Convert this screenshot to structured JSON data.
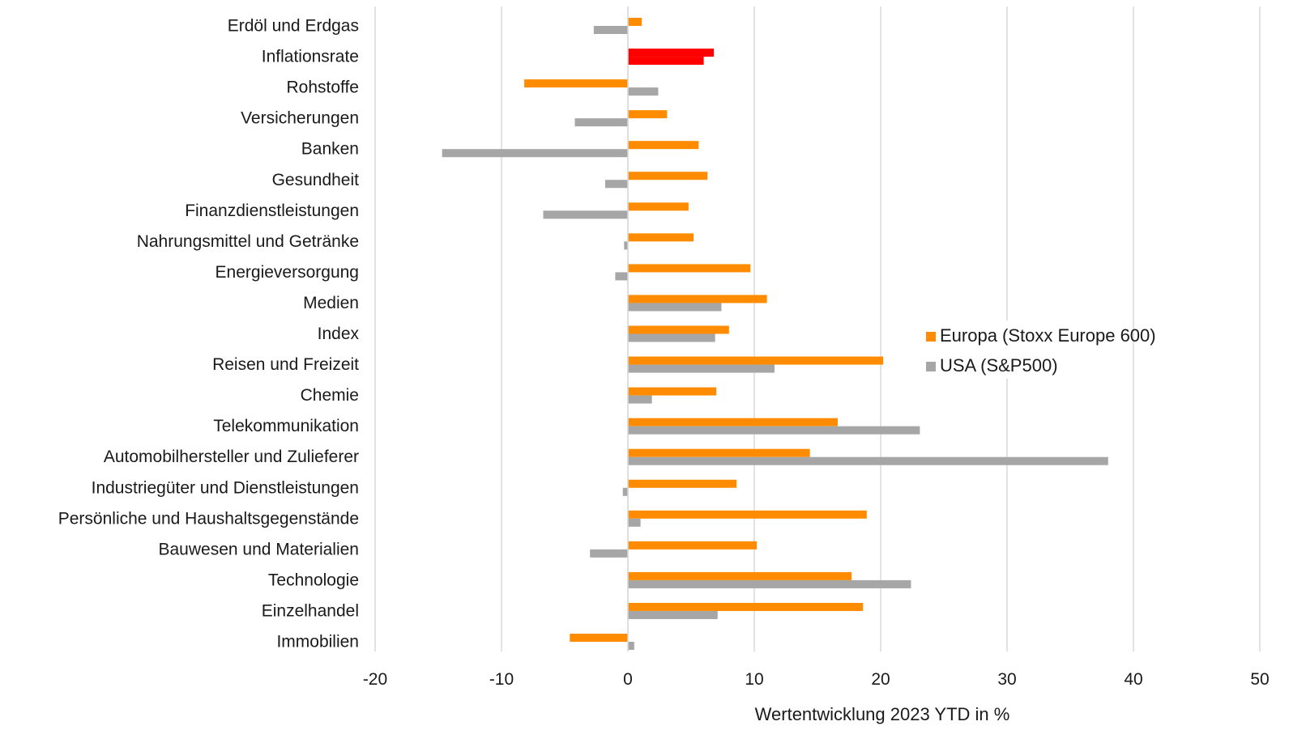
{
  "chart_data": {
    "type": "bar",
    "orientation": "horizontal",
    "categories": [
      "Erdöl und Erdgas",
      "Inflationsrate",
      "Rohstoffe",
      "Versicherungen",
      "Banken",
      "Gesundheit",
      "Finanzdienstleistungen",
      "Nahrungsmittel und Getränke",
      "Energieversorgung",
      "Medien",
      "Index",
      "Reisen und Freizeit",
      "Chemie",
      "Telekommunikation",
      "Automobilhersteller und Zulieferer",
      "Industriegüter und Dienstleistungen",
      "Persönliche und Haushaltsgegenstände",
      "Bauwesen und Materialien",
      "Technologie",
      "Einzelhandel",
      "Immobilien"
    ],
    "series": [
      {
        "name": "Europa (Stoxx Europe 600)",
        "color": "#ff8c00",
        "values": [
          1.1,
          6.8,
          -8.2,
          3.1,
          5.6,
          6.3,
          4.8,
          5.2,
          9.7,
          11.0,
          8.0,
          20.2,
          7.0,
          16.6,
          14.4,
          8.6,
          18.9,
          10.2,
          17.7,
          18.6,
          -4.6
        ]
      },
      {
        "name": "USA (S&P500)",
        "color": "#a6a6a6",
        "values": [
          -2.7,
          6.0,
          2.4,
          -4.2,
          -14.7,
          -1.8,
          -6.7,
          -0.3,
          -1.0,
          7.4,
          6.9,
          11.6,
          1.9,
          23.1,
          38.0,
          -0.4,
          1.0,
          -3.0,
          22.4,
          7.1,
          0.5
        ]
      }
    ],
    "highlight": {
      "category": "Inflationsrate",
      "color": "#ff0000"
    },
    "xlabel": "Wertentwicklung 2023 YTD in %",
    "ylabel": "",
    "xlim": [
      -20,
      50
    ],
    "xticks": [
      -20,
      -10,
      0,
      10,
      20,
      30,
      40,
      50
    ],
    "grid": "vertical",
    "legend_position": "right-middle"
  }
}
